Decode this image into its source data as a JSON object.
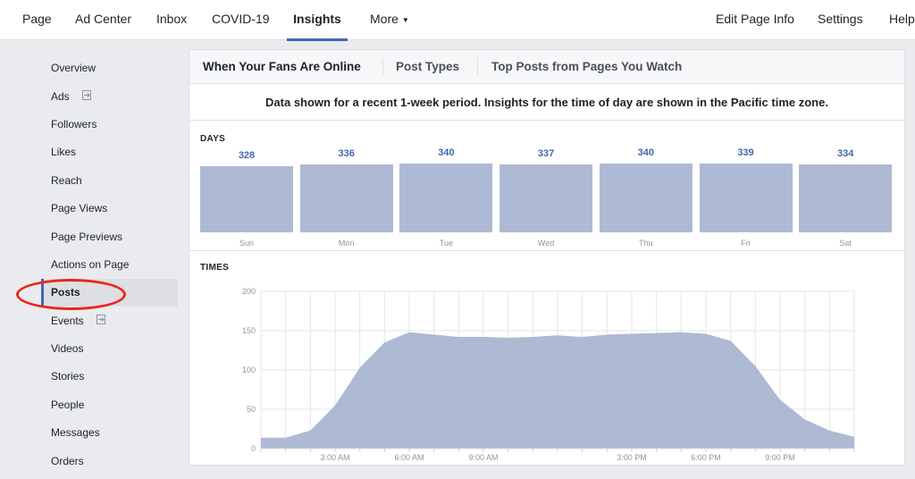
{
  "topnav": {
    "left_items": [
      {
        "label": "Page"
      },
      {
        "label": "Ad Center"
      },
      {
        "label": "Inbox"
      },
      {
        "label": "COVID-19"
      },
      {
        "label": "Insights",
        "active": true
      },
      {
        "label": "More",
        "icon": "caret-down-icon"
      }
    ],
    "right_items": [
      {
        "label": "Edit Page Info"
      },
      {
        "label": "Settings"
      },
      {
        "label": "Help"
      }
    ]
  },
  "sidebar": {
    "items": [
      {
        "label": "Overview"
      },
      {
        "label": "Ads",
        "icon": "external-link-icon"
      },
      {
        "label": "Followers"
      },
      {
        "label": "Likes"
      },
      {
        "label": "Reach"
      },
      {
        "label": "Page Views"
      },
      {
        "label": "Page Previews"
      },
      {
        "label": "Actions on Page"
      },
      {
        "label": "Posts",
        "active": true,
        "annotation": "red-circle-highlight"
      },
      {
        "label": "Events",
        "icon": "external-link-icon"
      },
      {
        "label": "Videos"
      },
      {
        "label": "Stories"
      },
      {
        "label": "People"
      },
      {
        "label": "Messages"
      },
      {
        "label": "Orders"
      }
    ]
  },
  "tabs": [
    {
      "label": "When Your Fans Are Online",
      "active": true
    },
    {
      "label": "Post Types"
    },
    {
      "label": "Top Posts from Pages You Watch"
    }
  ],
  "notice": "Data shown for a recent 1-week period. Insights for the time of day are shown in the Pacific time zone.",
  "colors": {
    "accent": "#4267b2",
    "bar_fill": "#aebad3",
    "highlight": "#e8271d"
  },
  "chart_data": [
    {
      "type": "bar",
      "title": "DAYS",
      "categories": [
        "Sun",
        "Mon",
        "Tue",
        "Wed",
        "Thu",
        "Fri",
        "Sat"
      ],
      "values": [
        328,
        336,
        340,
        337,
        340,
        339,
        334
      ],
      "ylim": [
        0,
        345
      ],
      "grid": false
    },
    {
      "type": "area",
      "title": "TIMES",
      "x": [
        0,
        1,
        2,
        3,
        4,
        5,
        6,
        7,
        8,
        9,
        10,
        11,
        12,
        13,
        14,
        15,
        16,
        17,
        18,
        19,
        20,
        21,
        22,
        23,
        24
      ],
      "values": [
        14,
        14,
        23,
        55,
        103,
        135,
        148,
        145,
        142,
        142,
        141,
        142,
        144,
        142,
        145,
        146,
        147,
        148,
        146,
        137,
        105,
        62,
        37,
        23,
        15
      ],
      "xtick_labels": [
        "3:00 AM",
        "6:00 AM",
        "9:00 AM",
        "3:00 PM",
        "6:00 PM",
        "9:00 PM"
      ],
      "xtick_positions": [
        3,
        6,
        9,
        15,
        18,
        21
      ],
      "ytick_labels": [
        "0",
        "50",
        "100",
        "150",
        "200"
      ],
      "yticks": [
        0,
        50,
        100,
        150,
        200
      ],
      "ylim": [
        0,
        200
      ],
      "grid": true
    }
  ]
}
